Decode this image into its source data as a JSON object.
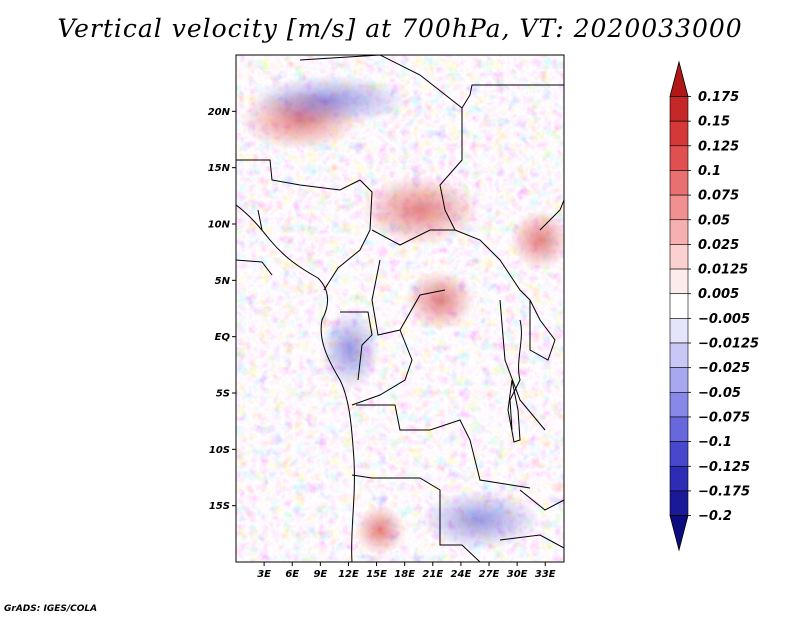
{
  "title": "Vertical velocity [m/s] at 700hPa, VT: 2020033000",
  "credit": "GrADS: IGES/COLA",
  "map": {
    "variable": "Vertical velocity",
    "units": "m/s",
    "level": "700hPa",
    "valid_time": "2020033000",
    "lat_range": [
      -20,
      25
    ],
    "lon_range": [
      0,
      35
    ],
    "lat_ticks": [
      {
        "label": "20N",
        "lat": 20
      },
      {
        "label": "15N",
        "lat": 15
      },
      {
        "label": "10N",
        "lat": 10
      },
      {
        "label": "5N",
        "lat": 5
      },
      {
        "label": "EQ",
        "lat": 0
      },
      {
        "label": "5S",
        "lat": -5
      },
      {
        "label": "10S",
        "lat": -10
      },
      {
        "label": "15S",
        "lat": -15
      }
    ],
    "lon_ticks": [
      {
        "label": "3E",
        "lon": 3
      },
      {
        "label": "6E",
        "lon": 6
      },
      {
        "label": "9E",
        "lon": 9
      },
      {
        "label": "12E",
        "lon": 12
      },
      {
        "label": "15E",
        "lon": 15
      },
      {
        "label": "18E",
        "lon": 18
      },
      {
        "label": "21E",
        "lon": 21
      },
      {
        "label": "24E",
        "lon": 24
      },
      {
        "label": "27E",
        "lon": 27
      },
      {
        "label": "30E",
        "lon": 30
      },
      {
        "label": "33E",
        "lon": 33
      }
    ]
  },
  "colorbar": {
    "levels": [
      "0.175",
      "0.15",
      "0.125",
      "0.1",
      "0.075",
      "0.05",
      "0.025",
      "0.0125",
      "0.005",
      "−0.005",
      "−0.0125",
      "−0.025",
      "−0.05",
      "−0.075",
      "−0.1",
      "−0.125",
      "−0.175",
      "−0.2"
    ],
    "colors": [
      "#b01818",
      "#c42828",
      "#d43838",
      "#e05050",
      "#e87070",
      "#f09090",
      "#f6b0b0",
      "#fad0d0",
      "#fdecec",
      "#ffffff",
      "#e4e4fb",
      "#c8c8f6",
      "#a8a8f0",
      "#8888e8",
      "#6868dc",
      "#4848cc",
      "#2c2cb4",
      "#1a1a98",
      "#0c0c80"
    ]
  }
}
